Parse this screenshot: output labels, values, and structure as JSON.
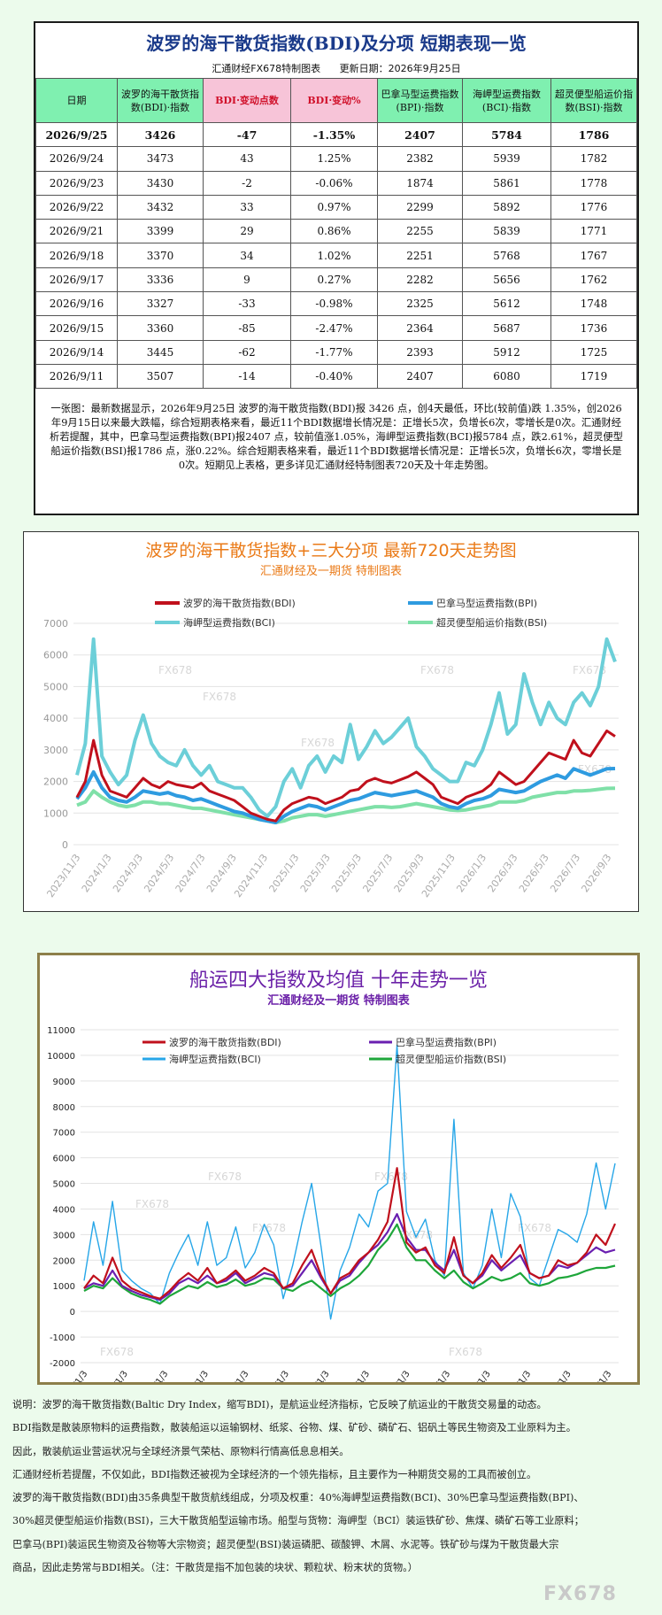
{
  "table_panel": {
    "title": "波罗的海干散货指数(BDI)及分项  短期表现一览",
    "maker": "汇通财经FX678特制图表",
    "update": "更新日期：2026年9月25日",
    "headers": [
      "日期",
      "波罗的海干散货指数(BDI)·指数",
      "BDI·变动点数",
      "BDI·变动%",
      "巴拿马型运费指数(BPI)·指数",
      "海岬型运费指数(BCI)·指数",
      "超灵便型船运价指数(BSI)·指数"
    ],
    "rows": [
      [
        "2026/9/25",
        "3426",
        "-47",
        "-1.35%",
        "2407",
        "5784",
        "1786"
      ],
      [
        "2026/9/24",
        "3473",
        "43",
        "1.25%",
        "2382",
        "5939",
        "1782"
      ],
      [
        "2026/9/23",
        "3430",
        "-2",
        "-0.06%",
        "1874",
        "5861",
        "1778"
      ],
      [
        "2026/9/22",
        "3432",
        "33",
        "0.97%",
        "2299",
        "5892",
        "1776"
      ],
      [
        "2026/9/21",
        "3399",
        "29",
        "0.86%",
        "2255",
        "5839",
        "1771"
      ],
      [
        "2026/9/18",
        "3370",
        "34",
        "1.02%",
        "2251",
        "5768",
        "1767"
      ],
      [
        "2026/9/17",
        "3336",
        "9",
        "0.27%",
        "2282",
        "5656",
        "1762"
      ],
      [
        "2026/9/16",
        "3327",
        "-33",
        "-0.98%",
        "2325",
        "5612",
        "1748"
      ],
      [
        "2026/9/15",
        "3360",
        "-85",
        "-2.47%",
        "2364",
        "5687",
        "1736"
      ],
      [
        "2026/9/14",
        "3445",
        "-62",
        "-1.77%",
        "2393",
        "5912",
        "1725"
      ],
      [
        "2026/9/11",
        "3507",
        "-14",
        "-0.40%",
        "2407",
        "6080",
        "1719"
      ]
    ],
    "note": "一张图：最新数据显示，2026年9月25日 波罗的海干散货指数(BDI)报 3426 点，创4天最低，环比(较前值)跌 1.35%，创2026年9月15日以来最大跌幅，综合短期表格来看，最近11个BDI数据增长情况是：正增长5次，负增长6次，零增长是0次。汇通财经析若提醒，其中，巴拿马型运费指数(BPI)报2407 点，较前值涨1.05%，海岬型运费指数(BCI)报5784 点，跌2.61%，超灵便型船运价指数(BSI)报1786 点，涨0.22%。综合短期表格来看，最近11个BDI数据增长情况是：正增长5次，负增长6次，零增长是0次。短期见上表格，更多详见汇通财经特制图表720天及十年走势图。"
  },
  "colors": {
    "bdi": "#c0101c",
    "bpi": "#2e9be0",
    "bci": "#6ccfd8",
    "bsi": "#7fe0a8",
    "bdi2": "#c0101c",
    "bpi2": "#6a1fb0",
    "bci2": "#26a6e8",
    "bsi2": "#1ea63a"
  },
  "chart_data": [
    {
      "type": "line",
      "title": "波罗的海干散货指数+三大分项  最新720天走势图",
      "subtitle": "汇通财经及一期货  特制图表",
      "ylim": [
        0,
        7000
      ],
      "yticks": [
        "0",
        "1000",
        "2000",
        "3000",
        "4000",
        "5000",
        "6000",
        "7000"
      ],
      "x_tick_labels": [
        "2023/11/3",
        "2024/1/3",
        "2024/3/3",
        "2024/5/3",
        "2024/7/3",
        "2024/9/3",
        "2024/11/3",
        "2025/1/3",
        "2025/3/3",
        "2025/5/3",
        "2025/7/3",
        "2025/9/3",
        "2025/11/3",
        "2026/1/3",
        "2026/3/3",
        "2026/5/3",
        "2026/7/3",
        "2026/9/3"
      ],
      "watermark": "FX678",
      "series": [
        {
          "name": "波罗的海干散货指数(BDI)",
          "color_key": "bdi",
          "values": [
            1500,
            2000,
            3300,
            2200,
            1700,
            1600,
            1500,
            1800,
            2100,
            1900,
            1800,
            2000,
            1900,
            1850,
            1800,
            1950,
            1700,
            1600,
            1500,
            1400,
            1200,
            1000,
            900,
            800,
            750,
            1100,
            1300,
            1400,
            1500,
            1450,
            1300,
            1400,
            1500,
            1700,
            1750,
            2000,
            2100,
            2000,
            1950,
            2050,
            2150,
            2300,
            2100,
            1900,
            1500,
            1400,
            1300,
            1500,
            1600,
            1700,
            1900,
            2300,
            2100,
            1900,
            2000,
            2300,
            2600,
            2900,
            2800,
            2700,
            3300,
            2900,
            2800,
            3200,
            3600,
            3426
          ]
        },
        {
          "name": "巴拿马型运费指数(BPI)",
          "color_key": "bpi",
          "values": [
            1450,
            1800,
            2300,
            1800,
            1500,
            1400,
            1350,
            1500,
            1700,
            1650,
            1600,
            1650,
            1550,
            1500,
            1400,
            1450,
            1350,
            1250,
            1150,
            1050,
            1000,
            900,
            800,
            750,
            700,
            900,
            1050,
            1150,
            1250,
            1200,
            1100,
            1200,
            1300,
            1400,
            1450,
            1550,
            1650,
            1600,
            1550,
            1600,
            1650,
            1700,
            1600,
            1500,
            1300,
            1200,
            1150,
            1300,
            1400,
            1450,
            1550,
            1750,
            1700,
            1650,
            1700,
            1850,
            2000,
            2100,
            2200,
            2100,
            2400,
            2300,
            2200,
            2300,
            2400,
            2407
          ]
        },
        {
          "name": "海岬型运费指数(BCI)",
          "color_key": "bci",
          "values": [
            2200,
            3200,
            6500,
            2800,
            2300,
            1900,
            2200,
            3300,
            4100,
            3200,
            2800,
            2600,
            2500,
            3000,
            2500,
            2200,
            2500,
            2000,
            1900,
            1800,
            1800,
            1500,
            1100,
            900,
            1200,
            2000,
            2400,
            1800,
            2500,
            2800,
            2300,
            2800,
            2600,
            3800,
            2700,
            3100,
            3600,
            3200,
            3400,
            3700,
            4000,
            3100,
            2800,
            2400,
            2200,
            2000,
            2000,
            2600,
            2500,
            3000,
            3800,
            4800,
            3500,
            3800,
            5400,
            4500,
            3800,
            4500,
            4000,
            3800,
            4500,
            4800,
            4400,
            5000,
            6500,
            5784
          ]
        },
        {
          "name": "超灵便型船运价指数(BSI)",
          "color_key": "bsi",
          "values": [
            1250,
            1350,
            1700,
            1500,
            1350,
            1250,
            1200,
            1250,
            1350,
            1350,
            1300,
            1300,
            1250,
            1200,
            1150,
            1150,
            1100,
            1050,
            1000,
            950,
            900,
            850,
            800,
            750,
            700,
            750,
            850,
            900,
            950,
            950,
            900,
            950,
            1000,
            1050,
            1100,
            1150,
            1200,
            1200,
            1180,
            1200,
            1250,
            1300,
            1250,
            1200,
            1150,
            1100,
            1080,
            1100,
            1150,
            1200,
            1250,
            1350,
            1350,
            1350,
            1400,
            1500,
            1550,
            1600,
            1650,
            1650,
            1700,
            1700,
            1720,
            1750,
            1780,
            1786
          ]
        }
      ]
    },
    {
      "type": "line",
      "title": "船运四大指数及均值 十年走势一览",
      "subtitle": "汇通财经及一期货 特制图表",
      "ylim": [
        -2000,
        11000
      ],
      "yticks": [
        "-2000",
        "-1000",
        "0",
        "1000",
        "2000",
        "3000",
        "4000",
        "5000",
        "6000",
        "7000",
        "8000",
        "9000",
        "10000",
        "11000"
      ],
      "x_tick_labels": [
        "2013/1/3",
        "2014/1/3",
        "2015/1/3",
        "2016/1/3",
        "2017/1/3",
        "2018/1/3",
        "2019/1/3",
        "2020/1/3",
        "2021/1/3",
        "2022/1/3",
        "2023/1/3",
        "2024/1/3",
        "2025/1/3",
        "2026/1/3"
      ],
      "watermark": "FX678",
      "series": [
        {
          "name": "波罗的海干散货指数(BDI)",
          "color_key": "bdi2",
          "values": [
            900,
            1400,
            1100,
            2100,
            1200,
            900,
            750,
            600,
            500,
            800,
            1200,
            1500,
            1200,
            1700,
            1100,
            1300,
            1600,
            1200,
            1400,
            1700,
            1500,
            900,
            1100,
            1800,
            2400,
            1400,
            700,
            1300,
            1500,
            2000,
            2300,
            2800,
            3500,
            5600,
            2700,
            2300,
            2500,
            1800,
            1500,
            2900,
            1400,
            1100,
            1500,
            2200,
            1700,
            2100,
            2600,
            1500,
            1300,
            1400,
            2000,
            1800,
            1900,
            2300,
            3000,
            2600,
            3426
          ]
        },
        {
          "name": "巴拿马型运费指数(BPI)",
          "color_key": "bpi2",
          "values": [
            900,
            1100,
            1000,
            1600,
            1000,
            800,
            650,
            550,
            450,
            700,
            1100,
            1300,
            1100,
            1400,
            1100,
            1200,
            1500,
            1100,
            1300,
            1500,
            1400,
            900,
            1000,
            1500,
            2000,
            1300,
            700,
            1200,
            1400,
            1900,
            2300,
            2600,
            3100,
            3800,
            2900,
            2400,
            2400,
            1900,
            1600,
            2400,
            1400,
            1100,
            1400,
            2000,
            1600,
            1900,
            2200,
            1500,
            1300,
            1400,
            1800,
            1700,
            1900,
            2200,
            2500,
            2300,
            2407
          ]
        },
        {
          "name": "海岬型运费指数(BCI)",
          "color_key": "bci2",
          "values": [
            1200,
            3500,
            1800,
            4300,
            1600,
            1200,
            900,
            700,
            300,
            1500,
            2300,
            3000,
            1800,
            3500,
            1800,
            2100,
            3300,
            1700,
            2300,
            3400,
            2600,
            500,
            1800,
            3500,
            5000,
            2500,
            -300,
            1600,
            2500,
            3800,
            3300,
            4700,
            5000,
            10400,
            3900,
            2900,
            3600,
            2000,
            1400,
            7500,
            1500,
            900,
            1800,
            4000,
            2100,
            4600,
            3700,
            1300,
            1000,
            2100,
            3200,
            3000,
            2700,
            3800,
            5800,
            4000,
            5784
          ]
        },
        {
          "name": "超灵便型船运价指数(BSI)",
          "color_key": "bsi2",
          "values": [
            800,
            1000,
            900,
            1300,
            950,
            700,
            550,
            450,
            300,
            600,
            800,
            1000,
            900,
            1150,
            950,
            1050,
            1250,
            1000,
            1100,
            1300,
            1250,
            900,
            800,
            1050,
            1200,
            900,
            600,
            900,
            1100,
            1400,
            1800,
            2400,
            2800,
            3400,
            2500,
            2000,
            2000,
            1600,
            1300,
            1600,
            1150,
            900,
            1100,
            1350,
            1200,
            1300,
            1500,
            1100,
            1000,
            1100,
            1300,
            1350,
            1450,
            1600,
            1700,
            1700,
            1786
          ]
        }
      ]
    }
  ],
  "description": [
    "说明：波罗的海干散货指数(Baltic Dry Index，缩写BDI)，是航运业经济指标，它反映了航运业的干散货交易量的动态。",
    "BDI指数是散装原物料的运费指数，散装船运以运输钢材、纸浆、谷物、煤、矿砂、磷矿石、铝矾土等民生物资及工业原料为主。",
    "因此，散装航运业营运状况与全球经济景气荣枯、原物料行情高低息息相关。",
    "汇通财经析若提醒，不仅如此，BDI指数还被视为全球经济的一个领先指标，且主要作为一种期货交易的工具而被创立。",
    "波罗的海干散货指数(BDI)由35条典型干散货航线组成，分项及权重：40%海岬型运费指数(BCI)、30%巴拿马型运费指数(BPI)、",
    "30%超灵便型船运价指数(BSI)，三大干散货船型运输市场。船型与货物：海岬型（BCI）装运铁矿砂、焦煤、磷矿石等工业原料；",
    "巴拿马(BPI)装运民生物资及谷物等大宗物资；超灵便型(BSI)装运磷肥、碳酸钾、木屑、水泥等。铁矿砂与煤为干散货最大宗",
    "商品，因此走势常与BDI相关。（注：干散货是指不加包装的块状、颗粒状、粉末状的货物。）"
  ],
  "brand": "FX678"
}
